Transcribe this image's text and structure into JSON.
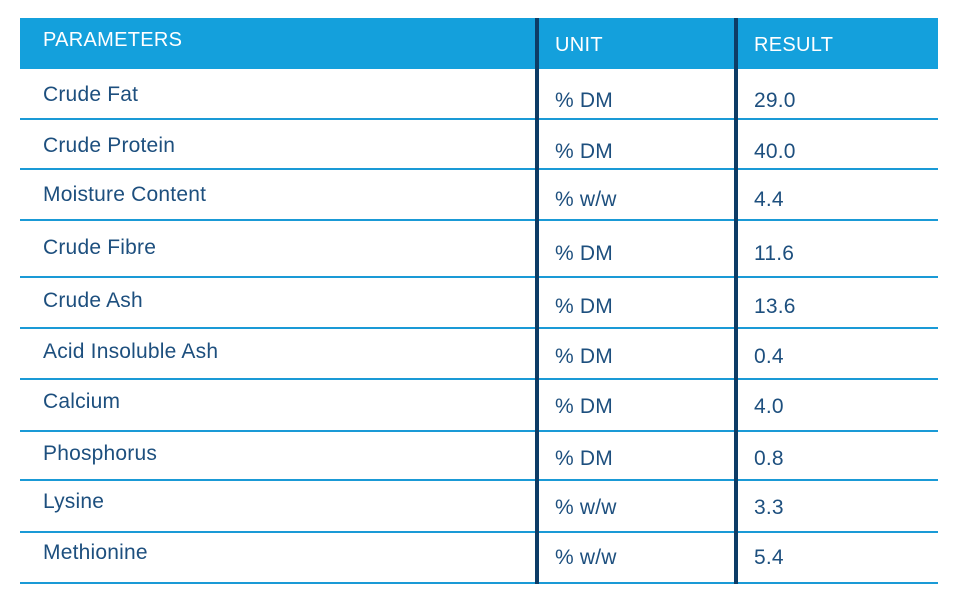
{
  "colors": {
    "header_bg": "#14a0dc",
    "header_text": "#ffffff",
    "body_text": "#1d4f7e",
    "row_border": "#1a9ad6",
    "column_divider": "#0d3c66"
  },
  "table": {
    "headers": {
      "parameter": "PARAMETERS",
      "unit": "UNIT",
      "result": "RESULT"
    },
    "rows": [
      {
        "parameter": "Crude Fat",
        "unit": "% DM",
        "result": "29.0"
      },
      {
        "parameter": "Crude Protein",
        "unit": "% DM",
        "result": "40.0"
      },
      {
        "parameter": "Moisture Content",
        "unit": "% w/w",
        "result": "4.4"
      },
      {
        "parameter": "Crude Fibre",
        "unit": "% DM",
        "result": "11.6"
      },
      {
        "parameter": "Crude Ash",
        "unit": "% DM",
        "result": "13.6"
      },
      {
        "parameter": "Acid Insoluble Ash",
        "unit": "% DM",
        "result": "0.4"
      },
      {
        "parameter": "Calcium",
        "unit": "% DM",
        "result": "4.0"
      },
      {
        "parameter": "Phosphorus",
        "unit": "% DM",
        "result": "0.8"
      },
      {
        "parameter": "Lysine",
        "unit": "% w/w",
        "result": "3.3"
      },
      {
        "parameter": "Methionine",
        "unit": "% w/w",
        "result": "5.4"
      }
    ]
  }
}
